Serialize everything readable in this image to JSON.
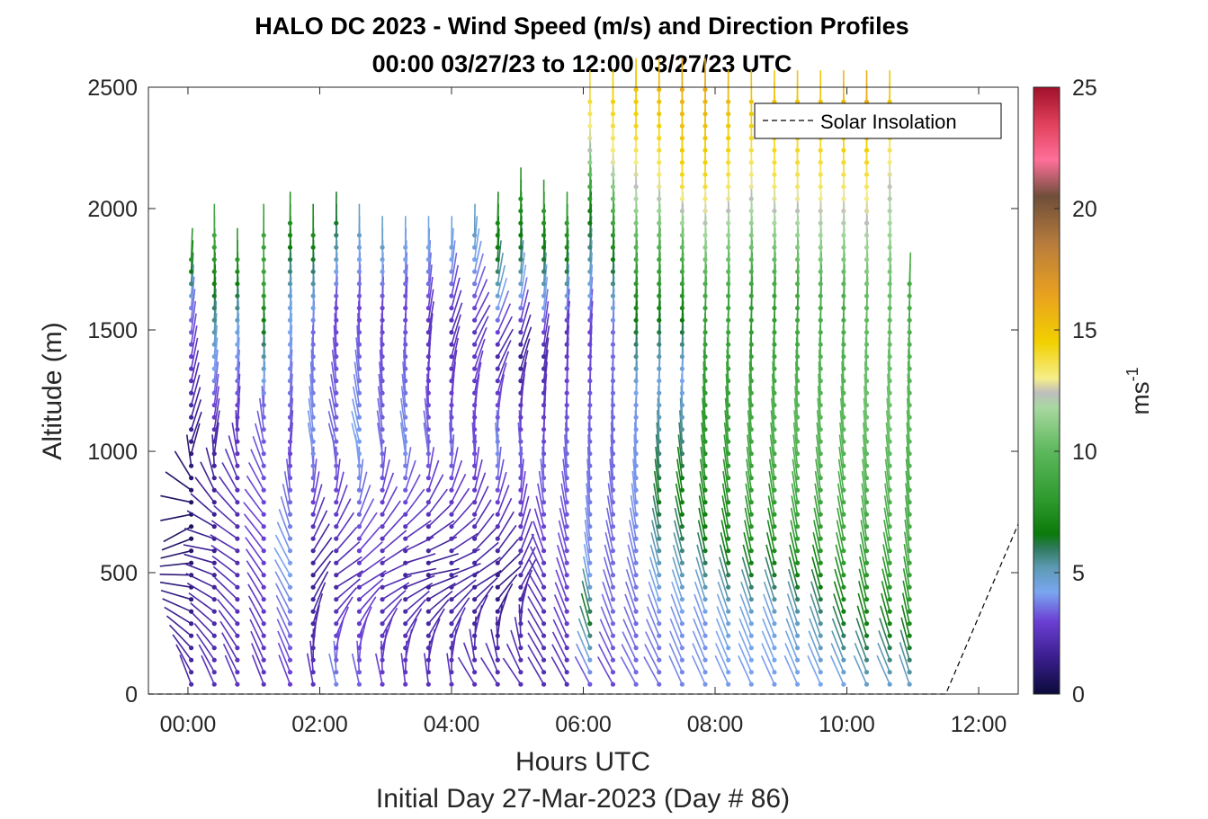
{
  "chart_data": {
    "type": "wind-barb-profile",
    "title": "HALO DC 2023 - Wind Speed (m/s) and Direction Profiles",
    "subtitle": "00:00 03/27/23 to 12:00 03/27/23  UTC",
    "xlabel": "Hours UTC",
    "xlabel2": "Initial Day 27-Mar-2023 (Day # 86)",
    "ylabel": "Altitude (m)",
    "x_ticks": [
      {
        "value": 0,
        "label": "00:00"
      },
      {
        "value": 2,
        "label": "02:00"
      },
      {
        "value": 4,
        "label": "04:00"
      },
      {
        "value": 6,
        "label": "06:00"
      },
      {
        "value": 8,
        "label": "08:00"
      },
      {
        "value": 10,
        "label": "10:00"
      },
      {
        "value": 12,
        "label": "12:00"
      }
    ],
    "xlim": [
      -0.6,
      12.6
    ],
    "y_ticks": [
      0,
      500,
      1000,
      1500,
      2000,
      2500
    ],
    "ylim": [
      0,
      2500
    ],
    "colorbar": {
      "label": "ms",
      "label_superscript": "-1",
      "ticks": [
        0,
        5,
        10,
        15,
        20,
        25
      ],
      "range": [
        0,
        25
      ],
      "stops": [
        {
          "v": 0,
          "c": "#0b0b3a"
        },
        {
          "v": 1.5,
          "c": "#3a1e8e"
        },
        {
          "v": 3,
          "c": "#6b3fd4"
        },
        {
          "v": 4.2,
          "c": "#7aa6f0"
        },
        {
          "v": 5.2,
          "c": "#5d9ab4"
        },
        {
          "v": 6,
          "c": "#2f7a5e"
        },
        {
          "v": 6.6,
          "c": "#0a7a0a"
        },
        {
          "v": 8,
          "c": "#2e9a2e"
        },
        {
          "v": 10,
          "c": "#5cb85c"
        },
        {
          "v": 11.8,
          "c": "#a8d8a0"
        },
        {
          "v": 12.4,
          "c": "#bdbdbd"
        },
        {
          "v": 13,
          "c": "#f5ee8a"
        },
        {
          "v": 14.5,
          "c": "#f2d000"
        },
        {
          "v": 16.5,
          "c": "#e8a020"
        },
        {
          "v": 18.5,
          "c": "#b87d3c"
        },
        {
          "v": 20.5,
          "c": "#6f4e3a"
        },
        {
          "v": 22,
          "c": "#ff6f9a"
        },
        {
          "v": 23.5,
          "c": "#e0405a"
        },
        {
          "v": 25,
          "c": "#a0102a"
        }
      ]
    },
    "legend": {
      "label": "Solar Insolation",
      "style": "dashed",
      "placement": "top-right"
    },
    "solar_insolation": {
      "x": [
        -0.6,
        11.5,
        12.6
      ],
      "y": [
        0,
        0,
        700
      ]
    },
    "profiles": [
      {
        "x": 0.05,
        "top": 1800,
        "cols": [
          [
            0,
            2.2,
            -165
          ],
          [
            700,
            0.6,
            -60
          ],
          [
            1000,
            1.2,
            160
          ],
          [
            1600,
            3.8,
            175
          ],
          [
            1800,
            8,
            178
          ],
          [
            2100,
            12.5,
            180
          ]
        ]
      },
      {
        "x": 0.4,
        "top": 1900,
        "cols": [
          [
            0,
            2.5,
            -160
          ],
          [
            600,
            1.5,
            -100
          ],
          [
            1000,
            1.8,
            170
          ],
          [
            1600,
            6,
            178
          ],
          [
            1900,
            9,
            180
          ]
        ]
      },
      {
        "x": 0.75,
        "top": 1800,
        "cols": [
          [
            0,
            2.6,
            -160
          ],
          [
            600,
            2.2,
            -120
          ],
          [
            1100,
            2.6,
            175
          ],
          [
            1500,
            4.6,
            178
          ],
          [
            1800,
            8,
            180
          ]
        ]
      },
      {
        "x": 1.15,
        "top": 1900,
        "cols": [
          [
            0,
            2.5,
            -160
          ],
          [
            700,
            3,
            -140
          ],
          [
            1200,
            3.5,
            178
          ],
          [
            1700,
            8.5,
            180
          ]
        ]
      },
      {
        "x": 1.55,
        "top": 1950,
        "cols": [
          [
            0,
            2.8,
            -160
          ],
          [
            500,
            4.2,
            -150
          ],
          [
            1000,
            3,
            175
          ],
          [
            1600,
            4.5,
            178
          ],
          [
            2000,
            8,
            180
          ]
        ]
      },
      {
        "x": 1.9,
        "top": 1900,
        "cols": [
          [
            0,
            2.6,
            -165
          ],
          [
            500,
            1.5,
            140
          ],
          [
            1000,
            4,
            -170
          ],
          [
            1500,
            3.5,
            178
          ],
          [
            1900,
            7.5,
            180
          ]
        ]
      },
      {
        "x": 2.25,
        "top": 1950,
        "cols": [
          [
            0,
            4,
            -160
          ],
          [
            450,
            2,
            120
          ],
          [
            1000,
            3.5,
            -165
          ],
          [
            1600,
            3,
            178
          ],
          [
            2000,
            7,
            180
          ]
        ]
      },
      {
        "x": 2.6,
        "top": 1900,
        "cols": [
          [
            0,
            3.5,
            -160
          ],
          [
            450,
            2.5,
            120
          ],
          [
            1000,
            4.2,
            -165
          ],
          [
            1600,
            3,
            178
          ],
          [
            1900,
            5,
            180
          ]
        ]
      },
      {
        "x": 2.95,
        "top": 1850,
        "cols": [
          [
            0,
            3,
            -160
          ],
          [
            450,
            2.2,
            110
          ],
          [
            1000,
            3.5,
            -170
          ],
          [
            1600,
            3,
            178
          ],
          [
            1850,
            5,
            180
          ]
        ]
      },
      {
        "x": 3.3,
        "top": 1850,
        "cols": [
          [
            0,
            2.8,
            -165
          ],
          [
            500,
            1.8,
            100
          ],
          [
            1000,
            4,
            -170
          ],
          [
            1600,
            3,
            176
          ],
          [
            1850,
            4.5,
            180
          ]
        ]
      },
      {
        "x": 3.65,
        "top": 1850,
        "cols": [
          [
            0,
            2.6,
            -165
          ],
          [
            500,
            1.5,
            100
          ],
          [
            1000,
            3.5,
            -170
          ],
          [
            1500,
            2.5,
            170
          ],
          [
            1850,
            4.4,
            180
          ]
        ]
      },
      {
        "x": 4,
        "top": 1850,
        "cols": [
          [
            0,
            2.6,
            -165
          ],
          [
            500,
            1.8,
            110
          ],
          [
            1000,
            3.5,
            -175
          ],
          [
            1500,
            2.2,
            160
          ],
          [
            1850,
            4.6,
            180
          ]
        ]
      },
      {
        "x": 4.35,
        "top": 1900,
        "cols": [
          [
            0,
            2.5,
            -140
          ],
          [
            450,
            1.6,
            120
          ],
          [
            1000,
            3.2,
            -175
          ],
          [
            1500,
            2.5,
            150
          ],
          [
            1900,
            5,
            180
          ]
        ]
      },
      {
        "x": 4.7,
        "top": 1950,
        "cols": [
          [
            0,
            2.5,
            -140
          ],
          [
            450,
            1.2,
            130
          ],
          [
            1000,
            4,
            -175
          ],
          [
            1400,
            2,
            150
          ],
          [
            1800,
            6.5,
            178
          ],
          [
            2100,
            8,
            180
          ]
        ]
      },
      {
        "x": 5.05,
        "top": 2050,
        "cols": [
          [
            0,
            2.4,
            -140
          ],
          [
            450,
            2,
            150
          ],
          [
            1000,
            3.5,
            -175
          ],
          [
            1400,
            1.5,
            160
          ],
          [
            1800,
            6,
            178
          ],
          [
            2100,
            8,
            180
          ]
        ]
      },
      {
        "x": 5.4,
        "top": 2000,
        "cols": [
          [
            0,
            2.3,
            -150
          ],
          [
            400,
            2.4,
            -150
          ],
          [
            900,
            3.5,
            -178
          ],
          [
            1400,
            2,
            170
          ],
          [
            1800,
            6.5,
            178
          ],
          [
            2000,
            8,
            180
          ]
        ]
      },
      {
        "x": 5.75,
        "top": 1950,
        "cols": [
          [
            0,
            2.3,
            -150
          ],
          [
            400,
            3,
            -160
          ],
          [
            1000,
            3.5,
            -178
          ],
          [
            1500,
            2.5,
            175
          ],
          [
            1800,
            7,
            178
          ],
          [
            2000,
            8.5,
            180
          ]
        ]
      },
      {
        "x": 6.1,
        "top": 2450,
        "cols": [
          [
            0,
            2.8,
            -150
          ],
          [
            300,
            6.5,
            -165
          ],
          [
            500,
            4,
            -170
          ],
          [
            1000,
            3.5,
            -178
          ],
          [
            1500,
            3,
            175
          ],
          [
            2000,
            7,
            178
          ],
          [
            2250,
            12.5,
            180
          ],
          [
            2450,
            14,
            180
          ]
        ]
      },
      {
        "x": 6.45,
        "top": 2450,
        "cols": [
          [
            0,
            3,
            -150
          ],
          [
            300,
            3.5,
            -160
          ],
          [
            900,
            3.5,
            -176
          ],
          [
            1500,
            3.5,
            178
          ],
          [
            1900,
            8,
            178
          ],
          [
            2200,
            13,
            180
          ],
          [
            2450,
            14.5,
            180
          ]
        ]
      },
      {
        "x": 6.8,
        "top": 2500,
        "cols": [
          [
            0,
            3.5,
            -150
          ],
          [
            300,
            3.5,
            -160
          ],
          [
            800,
            4,
            -174
          ],
          [
            1200,
            4,
            178
          ],
          [
            1700,
            8,
            178
          ],
          [
            2050,
            12,
            180
          ],
          [
            2300,
            14,
            180
          ],
          [
            2500,
            15,
            180
          ]
        ]
      },
      {
        "x": 7.15,
        "top": 2500,
        "cols": [
          [
            0,
            3.5,
            -150
          ],
          [
            300,
            3.8,
            -160
          ],
          [
            800,
            6.5,
            -172
          ],
          [
            1300,
            4.5,
            178
          ],
          [
            1800,
            9,
            178
          ],
          [
            2100,
            13,
            180
          ],
          [
            2500,
            15.5,
            180
          ]
        ]
      },
      {
        "x": 7.5,
        "top": 2500,
        "cols": [
          [
            0,
            3.8,
            -155
          ],
          [
            300,
            4,
            -160
          ],
          [
            800,
            7,
            -170
          ],
          [
            1300,
            4.2,
            178
          ],
          [
            1800,
            9.5,
            178
          ],
          [
            2100,
            14,
            180
          ],
          [
            2500,
            16,
            180
          ]
        ]
      },
      {
        "x": 7.85,
        "top": 2500,
        "cols": [
          [
            0,
            4,
            -155
          ],
          [
            300,
            4,
            -160
          ],
          [
            600,
            6.5,
            -168
          ],
          [
            1100,
            8,
            -175
          ],
          [
            1600,
            8.5,
            178
          ],
          [
            2100,
            14,
            180
          ],
          [
            2500,
            16,
            180
          ]
        ]
      },
      {
        "x": 8.2,
        "top": 2450,
        "cols": [
          [
            0,
            4,
            -155
          ],
          [
            300,
            4.5,
            -160
          ],
          [
            600,
            7,
            -168
          ],
          [
            1100,
            8.5,
            -175
          ],
          [
            1600,
            8.5,
            178
          ],
          [
            2100,
            13.5,
            180
          ],
          [
            2450,
            15.5,
            180
          ]
        ]
      },
      {
        "x": 8.55,
        "top": 2450,
        "cols": [
          [
            0,
            4,
            -155
          ],
          [
            300,
            4.5,
            -160
          ],
          [
            600,
            7.5,
            -168
          ],
          [
            1100,
            9,
            -175
          ],
          [
            1600,
            8,
            178
          ],
          [
            2100,
            13,
            180
          ],
          [
            2450,
            15,
            180
          ]
        ]
      },
      {
        "x": 8.9,
        "top": 2450,
        "cols": [
          [
            0,
            4,
            -155
          ],
          [
            300,
            4.5,
            -160
          ],
          [
            600,
            7.5,
            -168
          ],
          [
            1100,
            9.5,
            -175
          ],
          [
            1600,
            8,
            178
          ],
          [
            2100,
            13.5,
            180
          ],
          [
            2450,
            15,
            180
          ]
        ]
      },
      {
        "x": 9.25,
        "top": 2450,
        "cols": [
          [
            0,
            4,
            -155
          ],
          [
            300,
            5,
            -162
          ],
          [
            600,
            8,
            -168
          ],
          [
            1100,
            10,
            -175
          ],
          [
            1600,
            8.5,
            178
          ],
          [
            2100,
            13.5,
            180
          ],
          [
            2450,
            15,
            180
          ]
        ]
      },
      {
        "x": 9.6,
        "top": 2450,
        "cols": [
          [
            0,
            4,
            -155
          ],
          [
            300,
            5.5,
            -162
          ],
          [
            600,
            8,
            -168
          ],
          [
            1100,
            10,
            -175
          ],
          [
            1600,
            9,
            178
          ],
          [
            2100,
            13.5,
            180
          ],
          [
            2450,
            15,
            180
          ]
        ]
      },
      {
        "x": 9.95,
        "top": 2450,
        "cols": [
          [
            0,
            4,
            -155
          ],
          [
            300,
            6.5,
            -162
          ],
          [
            600,
            8.5,
            -168
          ],
          [
            1100,
            10,
            -175
          ],
          [
            1600,
            9,
            178
          ],
          [
            2100,
            13.5,
            180
          ],
          [
            2450,
            15.5,
            180
          ]
        ]
      },
      {
        "x": 10.3,
        "top": 2450,
        "cols": [
          [
            0,
            4.5,
            -155
          ],
          [
            300,
            7,
            -165
          ],
          [
            600,
            8.5,
            -170
          ],
          [
            1100,
            10.5,
            -175
          ],
          [
            1600,
            10,
            178
          ],
          [
            2100,
            13.5,
            180
          ],
          [
            2450,
            16,
            180
          ]
        ]
      },
      {
        "x": 10.65,
        "top": 2450,
        "cols": [
          [
            0,
            4.5,
            -155
          ],
          [
            300,
            7,
            -165
          ],
          [
            600,
            9,
            -170
          ],
          [
            1100,
            10.5,
            -175
          ],
          [
            1600,
            10,
            178
          ],
          [
            2100,
            12.5,
            180
          ],
          [
            2450,
            15,
            180
          ]
        ]
      },
      {
        "x": 10.95,
        "top": 1700,
        "cols": [
          [
            0,
            4.5,
            -160
          ],
          [
            300,
            7.5,
            -168
          ],
          [
            600,
            9,
            -172
          ],
          [
            1100,
            10,
            -176
          ],
          [
            1700,
            9,
            178
          ]
        ]
      }
    ]
  }
}
